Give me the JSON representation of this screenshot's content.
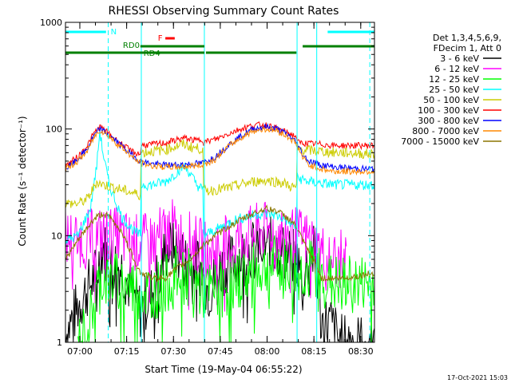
{
  "chart_data": {
    "type": "line",
    "title": "RHESSI Observing Summary Count Rates",
    "xlabel": "Start Time (19-May-04 06:55:22)",
    "ylabel": "Count Rate (s⁻¹ detector⁻¹)",
    "y_scale": "log",
    "ylim": [
      1,
      1000
    ],
    "x_units": "minutes after 06:55:22 UT",
    "xlim": [
      0,
      99
    ],
    "x_ticks": [
      {
        "minute": 4.6,
        "label": "07:00"
      },
      {
        "minute": 19.6,
        "label": "07:15"
      },
      {
        "minute": 34.6,
        "label": "07:30"
      },
      {
        "minute": 49.6,
        "label": "07:45"
      },
      {
        "minute": 64.6,
        "label": "08:00"
      },
      {
        "minute": 79.6,
        "label": "08:15"
      },
      {
        "minute": 94.6,
        "label": "08:30"
      }
    ],
    "y_ticks": [
      {
        "value": 1,
        "label": "1"
      },
      {
        "value": 10,
        "label": "10"
      },
      {
        "value": 100,
        "label": "100"
      },
      {
        "value": 1000,
        "label": "1000"
      }
    ],
    "legend": {
      "placement": "right",
      "header": [
        "Det 1,3,4,5,6,9,",
        "FDecim 1, Att 0"
      ]
    },
    "series": [
      {
        "name": "3 - 6 keV",
        "color": "#000000",
        "points": [
          [
            0,
            1.2
          ],
          [
            5,
            2.5
          ],
          [
            10,
            4.5
          ],
          [
            12,
            8
          ],
          [
            14,
            6
          ],
          [
            18,
            5
          ],
          [
            24,
            2
          ],
          [
            28,
            3
          ],
          [
            32,
            7
          ],
          [
            34,
            8
          ],
          [
            38,
            6
          ],
          [
            42,
            6
          ],
          [
            46,
            3
          ],
          [
            50,
            5
          ],
          [
            54,
            6
          ],
          [
            58,
            7
          ],
          [
            62,
            8
          ],
          [
            66,
            8
          ],
          [
            70,
            7
          ],
          [
            74,
            6
          ],
          [
            76,
            4
          ],
          [
            78,
            6
          ],
          [
            80,
            7
          ],
          [
            82,
            1.5
          ],
          [
            85,
            1.5
          ],
          [
            88,
            1
          ],
          [
            99,
            1
          ]
        ]
      },
      {
        "name": "6 - 12 keV",
        "color": "#ff00ff",
        "points": [
          [
            0,
            9.5
          ],
          [
            5,
            9.5
          ],
          [
            9,
            9.5
          ],
          [
            11,
            10
          ],
          [
            13,
            10
          ],
          [
            16,
            10
          ],
          [
            20,
            9
          ],
          [
            24,
            8.5
          ],
          [
            28,
            9
          ],
          [
            32,
            11
          ],
          [
            34,
            12
          ],
          [
            36,
            10
          ],
          [
            40,
            9
          ],
          [
            46,
            7
          ],
          [
            50,
            8
          ],
          [
            54,
            9
          ],
          [
            58,
            10
          ],
          [
            62,
            11
          ],
          [
            66,
            11
          ],
          [
            70,
            10.5
          ],
          [
            74,
            10
          ],
          [
            78,
            9
          ],
          [
            82,
            7
          ],
          [
            86,
            6
          ],
          [
            90,
            6
          ]
        ]
      },
      {
        "name": "12 - 25 keV",
        "color": "#00ff00",
        "points": [
          [
            4,
            1
          ],
          [
            6,
            1.2
          ],
          [
            8,
            1.8
          ],
          [
            10,
            3
          ],
          [
            12,
            4
          ],
          [
            16,
            3.8
          ],
          [
            20,
            3.5
          ],
          [
            24,
            3
          ],
          [
            28,
            3
          ],
          [
            32,
            3.5
          ],
          [
            36,
            4.5
          ],
          [
            40,
            4
          ],
          [
            44,
            3
          ],
          [
            48,
            3
          ],
          [
            52,
            3.2
          ],
          [
            56,
            4
          ],
          [
            60,
            4.5
          ],
          [
            64,
            5
          ],
          [
            68,
            5.5
          ],
          [
            72,
            5
          ],
          [
            74,
            4.2
          ],
          [
            78,
            5
          ],
          [
            80,
            5
          ],
          [
            82,
            4
          ],
          [
            86,
            3.5
          ],
          [
            90,
            3.5
          ],
          [
            99,
            3.5
          ]
        ]
      },
      {
        "name": "25 - 50 keV",
        "color": "#00ffff",
        "points": [
          [
            0,
            9
          ],
          [
            4,
            10
          ],
          [
            8,
            18
          ],
          [
            10,
            45
          ],
          [
            11,
            95
          ],
          [
            12,
            60
          ],
          [
            14,
            30
          ],
          [
            18,
            15
          ],
          [
            22,
            11
          ],
          [
            24,
            10
          ],
          [
            24.1,
            30
          ],
          [
            28,
            30
          ],
          [
            32,
            32
          ],
          [
            36,
            40
          ],
          [
            38,
            45
          ],
          [
            40,
            38
          ],
          [
            42,
            30
          ],
          [
            44,
            27
          ],
          [
            44.1,
            10
          ],
          [
            50,
            12
          ],
          [
            54,
            14
          ],
          [
            58,
            15
          ],
          [
            62,
            16
          ],
          [
            66,
            16
          ],
          [
            70,
            14.5
          ],
          [
            72,
            13
          ],
          [
            74,
            12
          ],
          [
            74.1,
            35
          ],
          [
            78,
            32
          ],
          [
            82,
            31
          ],
          [
            86,
            30
          ],
          [
            90,
            30
          ],
          [
            99,
            30
          ]
        ]
      },
      {
        "name": "50 - 100 keV",
        "color": "#cccc00",
        "points": [
          [
            0,
            20
          ],
          [
            4,
            20
          ],
          [
            7,
            22
          ],
          [
            9,
            28
          ],
          [
            10,
            32
          ],
          [
            12,
            30
          ],
          [
            16,
            28
          ],
          [
            20,
            26
          ],
          [
            22,
            25
          ],
          [
            24,
            24
          ],
          [
            24.1,
            60
          ],
          [
            28,
            62
          ],
          [
            32,
            64
          ],
          [
            36,
            70
          ],
          [
            38,
            72
          ],
          [
            40,
            68
          ],
          [
            42,
            66
          ],
          [
            44,
            65
          ],
          [
            44.1,
            26
          ],
          [
            48,
            27
          ],
          [
            52,
            28
          ],
          [
            56,
            30
          ],
          [
            60,
            32
          ],
          [
            64,
            33
          ],
          [
            68,
            32
          ],
          [
            70,
            31
          ],
          [
            72,
            29
          ],
          [
            74,
            28
          ],
          [
            74.1,
            65
          ],
          [
            78,
            63
          ],
          [
            82,
            62
          ],
          [
            86,
            60
          ],
          [
            90,
            60
          ],
          [
            99,
            58
          ]
        ]
      },
      {
        "name": "100 - 300 keV",
        "color": "#ff0000",
        "points": [
          [
            0,
            45
          ],
          [
            4,
            55
          ],
          [
            7,
            70
          ],
          [
            9,
            90
          ],
          [
            11,
            105
          ],
          [
            13,
            95
          ],
          [
            16,
            80
          ],
          [
            20,
            65
          ],
          [
            22,
            60
          ],
          [
            24,
            58
          ],
          [
            24.1,
            70
          ],
          [
            28,
            72
          ],
          [
            32,
            74
          ],
          [
            36,
            80
          ],
          [
            38,
            82
          ],
          [
            40,
            80
          ],
          [
            42,
            78
          ],
          [
            44,
            80
          ],
          [
            44.1,
            75
          ],
          [
            48,
            80
          ],
          [
            52,
            90
          ],
          [
            56,
            100
          ],
          [
            60,
            108
          ],
          [
            64,
            110
          ],
          [
            68,
            100
          ],
          [
            72,
            90
          ],
          [
            74,
            85
          ],
          [
            74.1,
            75
          ],
          [
            78,
            73
          ],
          [
            82,
            72
          ],
          [
            86,
            70
          ],
          [
            90,
            70
          ],
          [
            99,
            70
          ]
        ]
      },
      {
        "name": "300 - 800 keV",
        "color": "#0000ff",
        "points": [
          [
            0,
            42
          ],
          [
            4,
            52
          ],
          [
            7,
            65
          ],
          [
            9,
            85
          ],
          [
            11,
            100
          ],
          [
            13,
            92
          ],
          [
            16,
            78
          ],
          [
            20,
            62
          ],
          [
            22,
            55
          ],
          [
            24,
            50
          ],
          [
            28,
            47
          ],
          [
            32,
            46
          ],
          [
            36,
            46
          ],
          [
            40,
            47
          ],
          [
            44,
            48
          ],
          [
            48,
            55
          ],
          [
            52,
            70
          ],
          [
            56,
            85
          ],
          [
            60,
            100
          ],
          [
            64,
            105
          ],
          [
            68,
            100
          ],
          [
            72,
            85
          ],
          [
            74,
            75
          ],
          [
            76,
            58
          ],
          [
            78,
            50
          ],
          [
            82,
            46
          ],
          [
            86,
            44
          ],
          [
            90,
            43
          ],
          [
            99,
            42
          ]
        ]
      },
      {
        "name": "800 - 7000 keV",
        "color": "#ff8800",
        "points": [
          [
            0,
            42
          ],
          [
            4,
            50
          ],
          [
            7,
            62
          ],
          [
            9,
            82
          ],
          [
            11,
            98
          ],
          [
            13,
            90
          ],
          [
            16,
            75
          ],
          [
            20,
            60
          ],
          [
            22,
            52
          ],
          [
            24,
            48
          ],
          [
            28,
            45
          ],
          [
            32,
            44
          ],
          [
            36,
            44
          ],
          [
            40,
            45
          ],
          [
            44,
            46
          ],
          [
            48,
            52
          ],
          [
            52,
            68
          ],
          [
            56,
            82
          ],
          [
            60,
            96
          ],
          [
            64,
            100
          ],
          [
            68,
            96
          ],
          [
            72,
            82
          ],
          [
            74,
            72
          ],
          [
            76,
            54
          ],
          [
            78,
            46
          ],
          [
            82,
            42
          ],
          [
            86,
            40
          ],
          [
            90,
            40
          ],
          [
            99,
            40
          ]
        ]
      },
      {
        "name": "7000 - 15000 keV",
        "color": "#8b7500",
        "points": [
          [
            0,
            6
          ],
          [
            4,
            9
          ],
          [
            8,
            13
          ],
          [
            10,
            15
          ],
          [
            12,
            16
          ],
          [
            14,
            15
          ],
          [
            18,
            11
          ],
          [
            20,
            8
          ],
          [
            22,
            6
          ],
          [
            24,
            4.5
          ],
          [
            28,
            4
          ],
          [
            32,
            4
          ],
          [
            36,
            5
          ],
          [
            40,
            6
          ],
          [
            44,
            8
          ],
          [
            48,
            10
          ],
          [
            52,
            12
          ],
          [
            56,
            14
          ],
          [
            60,
            16
          ],
          [
            64,
            18
          ],
          [
            68,
            17
          ],
          [
            72,
            14
          ],
          [
            74,
            12
          ],
          [
            76,
            9
          ],
          [
            78,
            7
          ],
          [
            80,
            5.5
          ],
          [
            82,
            4
          ],
          [
            86,
            4
          ],
          [
            90,
            4
          ],
          [
            99,
            4.5
          ]
        ]
      }
    ],
    "annotations": {
      "flag_lines": [
        {
          "label": "N",
          "color": "#00ffff",
          "segments": [
            [
              0,
              13
            ],
            [
              84,
              99
            ]
          ]
        },
        {
          "label": "F",
          "color": "#ff0000",
          "segments": [
            [
              32,
              35
            ]
          ]
        },
        {
          "label": "RD0",
          "color": "#008000",
          "segments": [
            [
              24,
              44.5
            ],
            [
              76,
              99
            ]
          ]
        },
        {
          "label": "RD4",
          "color": "#008000",
          "segments": [
            [
              0,
              44.5
            ],
            [
              45,
              74
            ]
          ]
        }
      ],
      "vertical_lines": [
        {
          "minute": 13.7,
          "style": "dashed",
          "color": "#00ffff"
        },
        {
          "minute": 24.3,
          "style": "solid",
          "color": "#00ffff"
        },
        {
          "minute": 44.5,
          "style": "solid",
          "color": "#00ffff"
        },
        {
          "minute": 74.2,
          "style": "solid",
          "color": "#00ffff"
        },
        {
          "minute": 80.5,
          "style": "solid",
          "color": "#00ffff"
        },
        {
          "minute": 97.5,
          "style": "dashed",
          "color": "#00ffff"
        }
      ]
    },
    "footer": "17-Oct-2021 15:03"
  }
}
